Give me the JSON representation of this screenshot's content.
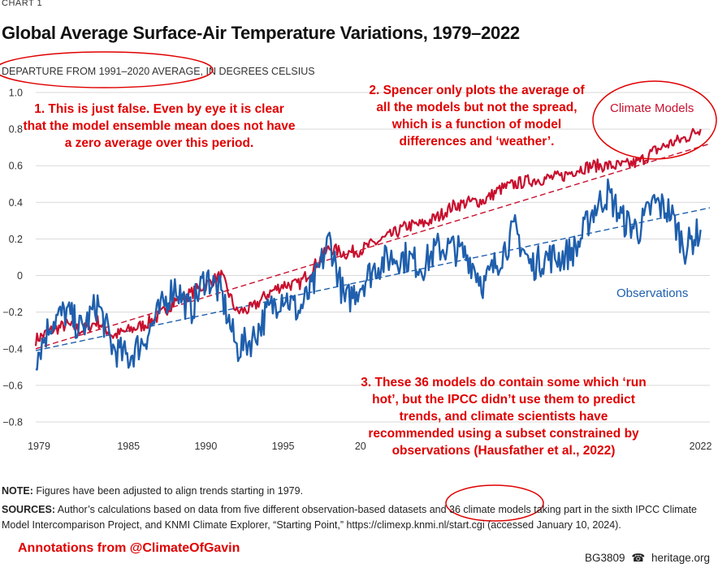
{
  "header": {
    "kicker": "CHART 1",
    "title": "Global Average Surface-Air Temperature Variations, 1979–2022",
    "subtitle": "DEPARTURE FROM 1991–2020 AVERAGE, IN DEGREES CELSIUS"
  },
  "chart_data": {
    "type": "line",
    "title": "Global Average Surface-Air Temperature Variations, 1979–2022",
    "ylabel": "DEPARTURE FROM 1991–2020 AVERAGE, IN DEGREES CELSIUS",
    "xlabel": "",
    "ylim": [
      -0.8,
      1.0
    ],
    "xlim": [
      1979,
      2022.6
    ],
    "y_ticks": [
      "1.0",
      "0.8",
      "0.6",
      "0.4",
      "0.2",
      "0",
      "−0.2",
      "−0.4",
      "−0.6",
      "−0.8"
    ],
    "x_ticks": [
      "1979",
      "1985",
      "1990",
      "1995",
      "20",
      "2022"
    ],
    "grid": true,
    "series": [
      {
        "name": "Climate Models",
        "color": "#c8102e",
        "x": [
          1979,
          1980,
          1981,
          1982,
          1983,
          1984,
          1985,
          1986,
          1987,
          1988,
          1989,
          1990,
          1991,
          1992,
          1993,
          1994,
          1995,
          1996,
          1997,
          1998,
          1999,
          2000,
          2001,
          2002,
          2003,
          2004,
          2005,
          2006,
          2007,
          2008,
          2009,
          2010,
          2011,
          2012,
          2013,
          2014,
          2015,
          2016,
          2017,
          2018,
          2019,
          2020,
          2021,
          2022
        ],
        "values": [
          -0.35,
          -0.3,
          -0.27,
          -0.3,
          -0.25,
          -0.33,
          -0.3,
          -0.27,
          -0.22,
          -0.14,
          -0.1,
          -0.05,
          0.0,
          -0.2,
          -0.18,
          -0.1,
          -0.05,
          -0.05,
          0.05,
          0.15,
          0.12,
          0.14,
          0.18,
          0.22,
          0.27,
          0.28,
          0.32,
          0.38,
          0.4,
          0.41,
          0.47,
          0.5,
          0.52,
          0.53,
          0.54,
          0.58,
          0.6,
          0.6,
          0.6,
          0.62,
          0.68,
          0.72,
          0.75,
          0.8
        ]
      },
      {
        "name": "Observations",
        "color": "#1f5fad",
        "x": [
          1979,
          1980,
          1981,
          1982,
          1983,
          1984,
          1985,
          1986,
          1987,
          1988,
          1989,
          1990,
          1991,
          1992,
          1993,
          1994,
          1995,
          1996,
          1997,
          1998,
          1999,
          2000,
          2001,
          2002,
          2003,
          2004,
          2005,
          2006,
          2007,
          2008,
          2009,
          2010,
          2011,
          2012,
          2013,
          2014,
          2015,
          2016,
          2017,
          2018,
          2019,
          2020,
          2021,
          2022
        ],
        "values": [
          -0.45,
          -0.25,
          -0.2,
          -0.3,
          -0.15,
          -0.4,
          -0.45,
          -0.35,
          -0.2,
          -0.05,
          -0.2,
          0.0,
          -0.1,
          -0.4,
          -0.35,
          -0.2,
          -0.1,
          -0.2,
          -0.05,
          0.2,
          -0.15,
          -0.05,
          0.05,
          0.1,
          0.1,
          0.05,
          0.15,
          0.15,
          0.1,
          -0.05,
          0.1,
          0.25,
          0.05,
          0.1,
          0.1,
          0.15,
          0.35,
          0.45,
          0.3,
          0.25,
          0.4,
          0.35,
          0.15,
          0.25
        ]
      }
    ],
    "trend_lines": [
      {
        "name": "Climate Models trend",
        "color": "#c8102e",
        "x": [
          1979,
          2022.6
        ],
        "values": [
          -0.4,
          0.72
        ]
      },
      {
        "name": "Observations trend",
        "color": "#1f5fad",
        "x": [
          1979,
          2022.6
        ],
        "values": [
          -0.41,
          0.37
        ]
      }
    ],
    "series_labels": [
      "Climate Models",
      "Observations"
    ]
  },
  "annotations": {
    "a1": "1. This is just false.  Even by eye it is clear that the model ensemble mean does not have a zero average over this period.",
    "a2": "2. Spencer only plots the average of all the models but not the spread, which is a function of model differences and ‘weather’.",
    "a3": "3. These 36 models do contain some which ‘run hot’, but the IPCC didn’t use them to predict trends, and climate scientists have recommended using a subset constrained by observations (Hausfather et al., 2022)"
  },
  "notes": {
    "note_label": "NOTE:",
    "note_text": "Figures have been adjusted to align trends starting in 1979.",
    "sources_label": "SOURCES:",
    "sources_text": "Author’s calculations based on data from five different observation-based datasets and 36 climate models taking part in the sixth IPCC Climate Model Intercomparison Project, and KNMI Climate Explorer, “Starting Point,” https://climexp.knmi.nl/start.cgi (accessed January 10, 2024)."
  },
  "footer": {
    "credit": "Annotations from @ClimateOfGavin",
    "report_id": "BG3809",
    "bell_icon": "☎",
    "site": "heritage.org"
  },
  "colors": {
    "models": "#c8102e",
    "observations": "#1f5fad",
    "annotation": "#e00000"
  }
}
